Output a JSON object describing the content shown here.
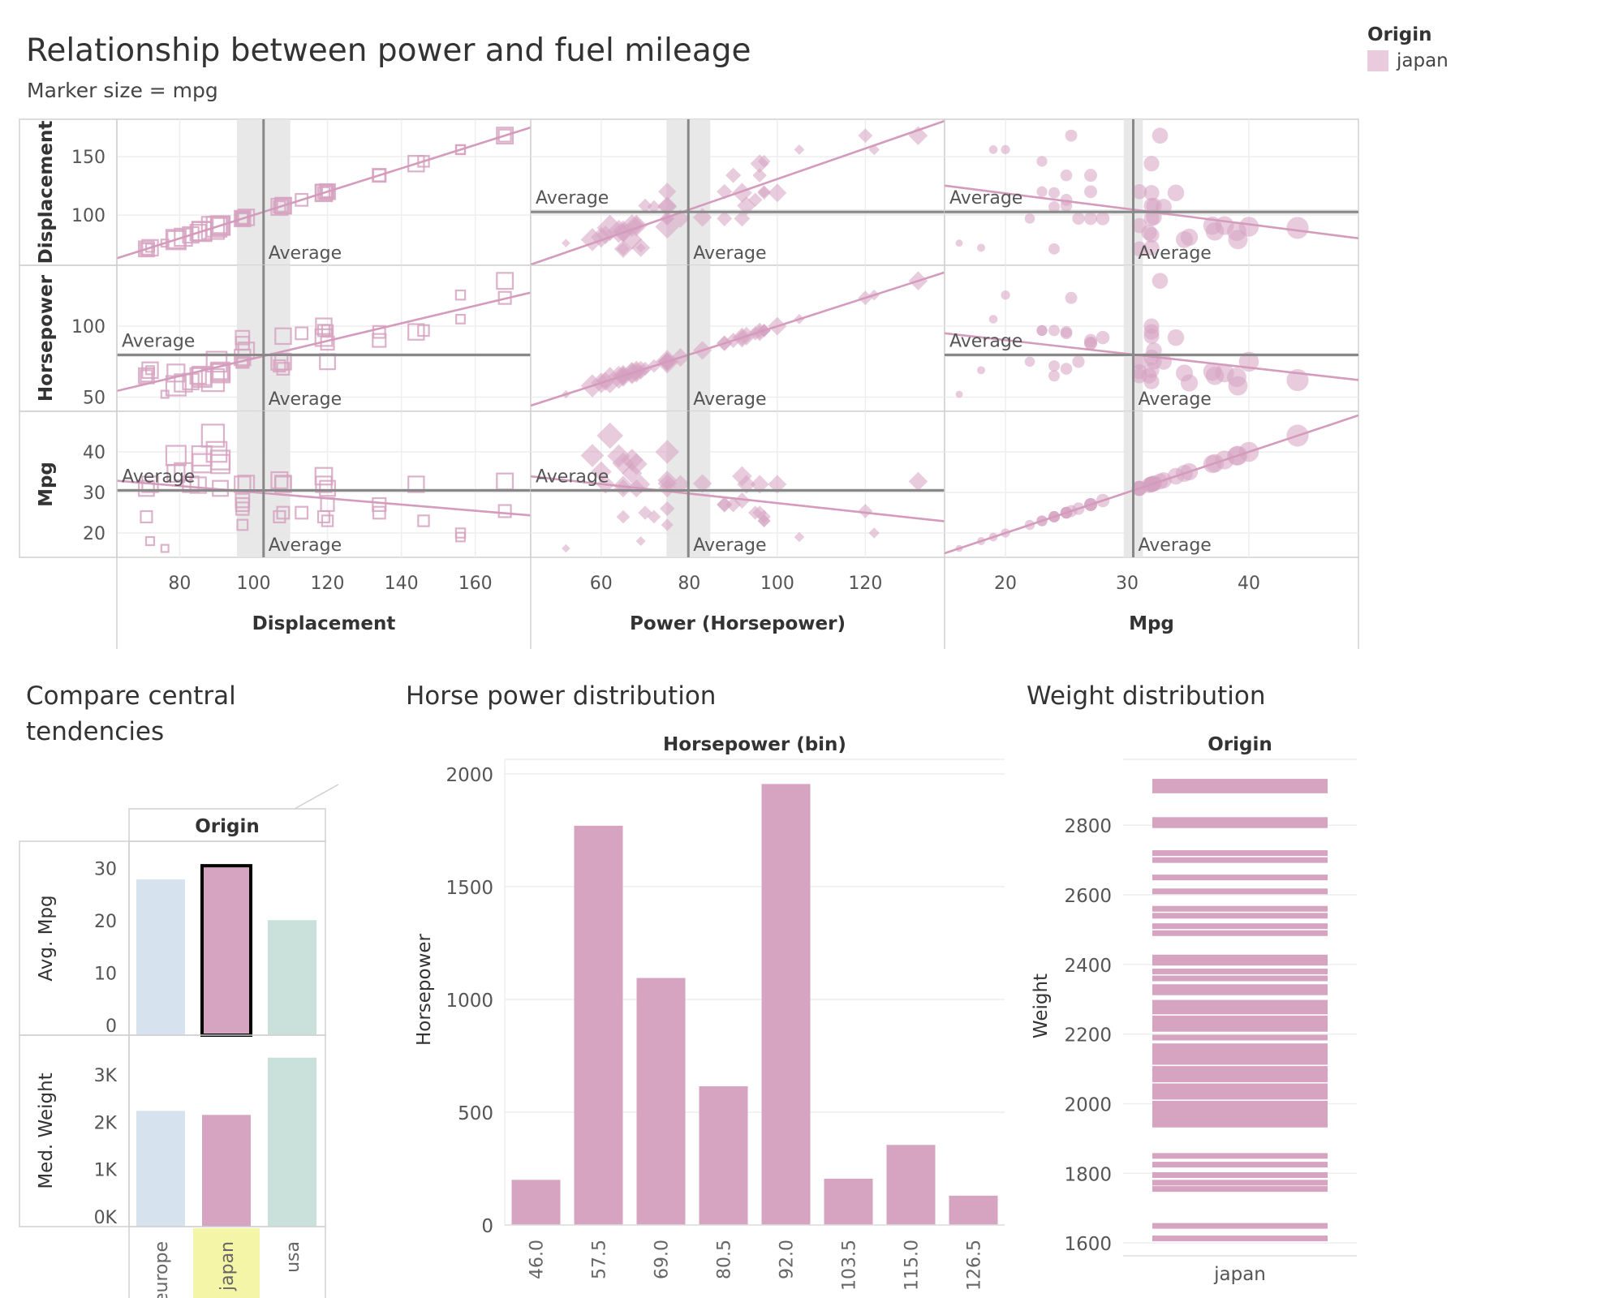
{
  "title": "Relationship between power and fuel mileage",
  "subtitle": "Marker size = mpg",
  "legend": {
    "title": "Origin",
    "items": [
      {
        "label": "japan",
        "color": "#e9cbdd"
      }
    ]
  },
  "colors": {
    "japan": "#d6a3c1",
    "europe": "#d6e3ee",
    "usa": "#c9e1da",
    "highlight": "#f5f5a7",
    "band": "#e6e6e6",
    "avg": "#888888"
  },
  "average_label": "Average",
  "chart_data": [
    {
      "type": "scatter",
      "title": "Relationship between power and fuel mileage",
      "subtitle": "Marker size = mpg",
      "variables": [
        "Displacement",
        "Horsepower",
        "Mpg"
      ],
      "row_labels": [
        "Displacement",
        "Horsepower",
        "Mpg"
      ],
      "column_labels": [
        "Displacement",
        "Power (Horsepower)",
        "Mpg"
      ],
      "x_ticks": [
        [
          80,
          100,
          120,
          140,
          160
        ],
        [
          60,
          80,
          100,
          120
        ],
        [
          20,
          30,
          40
        ]
      ],
      "y_ticks": [
        [
          100,
          150
        ],
        [
          50,
          100
        ],
        [
          20,
          30,
          40
        ]
      ],
      "series_name": "japan",
      "averages": {
        "Displacement": 102.7,
        "Horsepower": 79.8,
        "Mpg": 30.5
      },
      "points": [
        {
          "Displacement": 71,
          "Horsepower": 65,
          "Mpg": 31.0
        },
        {
          "Displacement": 72,
          "Horsepower": 69,
          "Mpg": 18.0
        },
        {
          "Displacement": 71,
          "Horsepower": 65,
          "Mpg": 24.0
        },
        {
          "Displacement": 72,
          "Horsepower": 69,
          "Mpg": 32.0
        },
        {
          "Displacement": 76,
          "Horsepower": 52,
          "Mpg": 16.2
        },
        {
          "Displacement": 79,
          "Horsepower": 58,
          "Mpg": 39.1
        },
        {
          "Displacement": 79,
          "Horsepower": 67,
          "Mpg": 34.7
        },
        {
          "Displacement": 81,
          "Horsepower": 60,
          "Mpg": 35.1
        },
        {
          "Displacement": 83,
          "Horsepower": 61,
          "Mpg": 32.0
        },
        {
          "Displacement": 85,
          "Horsepower": 65,
          "Mpg": 31.8
        },
        {
          "Displacement": 86,
          "Horsepower": 65,
          "Mpg": 37.2
        },
        {
          "Displacement": 86,
          "Horsepower": 64,
          "Mpg": 39.0
        },
        {
          "Displacement": 89,
          "Horsepower": 62,
          "Mpg": 44.0
        },
        {
          "Displacement": 90,
          "Horsepower": 75,
          "Mpg": 40.0
        },
        {
          "Displacement": 91,
          "Horsepower": 68,
          "Mpg": 37.0
        },
        {
          "Displacement": 91,
          "Horsepower": 67,
          "Mpg": 38.0
        },
        {
          "Displacement": 91,
          "Horsepower": 68,
          "Mpg": 31.0
        },
        {
          "Displacement": 97,
          "Horsepower": 75,
          "Mpg": 26.0
        },
        {
          "Displacement": 97,
          "Horsepower": 88,
          "Mpg": 27.0
        },
        {
          "Displacement": 97,
          "Horsepower": 92,
          "Mpg": 28.0
        },
        {
          "Displacement": 97,
          "Horsepower": 78,
          "Mpg": 32.0
        },
        {
          "Displacement": 97,
          "Horsepower": 75,
          "Mpg": 22.0
        },
        {
          "Displacement": 98,
          "Horsepower": 83,
          "Mpg": 32.2
        },
        {
          "Displacement": 107,
          "Horsepower": 75,
          "Mpg": 33.0
        },
        {
          "Displacement": 107,
          "Horsepower": 72,
          "Mpg": 24.0
        },
        {
          "Displacement": 108,
          "Horsepower": 75,
          "Mpg": 32.2
        },
        {
          "Displacement": 108,
          "Horsepower": 70,
          "Mpg": 25.0
        },
        {
          "Displacement": 108,
          "Horsepower": 93,
          "Mpg": 32.0
        },
        {
          "Displacement": 113,
          "Horsepower": 95,
          "Mpg": 25.0
        },
        {
          "Displacement": 119,
          "Horsepower": 97,
          "Mpg": 24.0
        },
        {
          "Displacement": 119,
          "Horsepower": 92,
          "Mpg": 34.0
        },
        {
          "Displacement": 119,
          "Horsepower": 100,
          "Mpg": 32.0
        },
        {
          "Displacement": 120,
          "Horsepower": 88,
          "Mpg": 27.0
        },
        {
          "Displacement": 120,
          "Horsepower": 75,
          "Mpg": 31.0
        },
        {
          "Displacement": 120,
          "Horsepower": 97,
          "Mpg": 23.0
        },
        {
          "Displacement": 134,
          "Horsepower": 90,
          "Mpg": 27.0
        },
        {
          "Displacement": 134,
          "Horsepower": 96,
          "Mpg": 25.0
        },
        {
          "Displacement": 144,
          "Horsepower": 96,
          "Mpg": 32.0
        },
        {
          "Displacement": 146,
          "Horsepower": 97,
          "Mpg": 23.0
        },
        {
          "Displacement": 156,
          "Horsepower": 122,
          "Mpg": 20.0
        },
        {
          "Displacement": 156,
          "Horsepower": 105,
          "Mpg": 19.0
        },
        {
          "Displacement": 168,
          "Horsepower": 132,
          "Mpg": 32.7
        },
        {
          "Displacement": 168,
          "Horsepower": 120,
          "Mpg": 25.4
        }
      ]
    },
    {
      "type": "bar",
      "title": "Compare central tendencies",
      "column_header": "Origin",
      "categories": [
        "europe",
        "japan",
        "usa"
      ],
      "highlighted": "japan",
      "series": [
        {
          "name": "Avg. Mpg",
          "values": [
            27.9,
            30.5,
            20.1
          ],
          "ticks": [
            0,
            10,
            20,
            30
          ]
        },
        {
          "name": "Med. Weight",
          "values": [
            2240,
            2155,
            3365
          ],
          "ticks": [
            "0K",
            "1K",
            "2K",
            "3K"
          ]
        }
      ]
    },
    {
      "type": "bar",
      "title": "Horse power distribution",
      "xlabel": "Horsepower (bin)",
      "ylabel": "Horsepower",
      "categories": [
        "46.0",
        "57.5",
        "69.0",
        "80.5",
        "92.0",
        "103.5",
        "115.0",
        "126.5"
      ],
      "values": [
        200,
        1770,
        1095,
        615,
        1955,
        205,
        355,
        130
      ],
      "ylim": [
        0,
        2000
      ],
      "yticks": [
        0,
        500,
        1000,
        1500,
        2000
      ]
    },
    {
      "type": "scatter",
      "title": "Weight distribution",
      "column_header": "Origin",
      "category": "japan",
      "ylabel": "Weight",
      "ylim": [
        1570,
        2980
      ],
      "yticks": [
        1600,
        1800,
        2000,
        2200,
        2400,
        2600,
        2800
      ],
      "values": [
        1613,
        1649,
        1755,
        1773,
        1795,
        1825,
        1850,
        1940,
        1950,
        1965,
        1975,
        1990,
        2000,
        2020,
        2035,
        2050,
        2070,
        2085,
        2100,
        2120,
        2130,
        2145,
        2155,
        2165,
        2190,
        2215,
        2230,
        2245,
        2265,
        2280,
        2290,
        2320,
        2335,
        2360,
        2380,
        2405,
        2420,
        2490,
        2510,
        2540,
        2560,
        2610,
        2650,
        2700,
        2720,
        2800,
        2815,
        2900,
        2910,
        2925
      ]
    }
  ]
}
